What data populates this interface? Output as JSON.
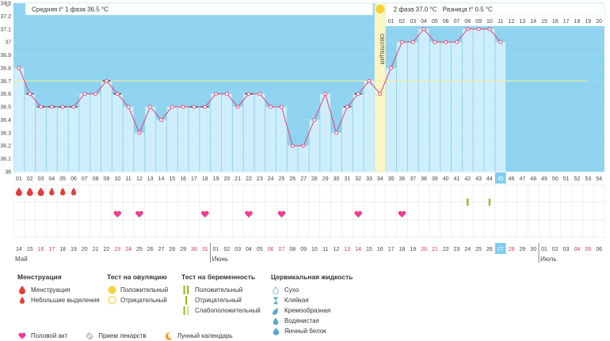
{
  "header": {
    "phase1_label": "Средняя t° 1 фаза 36.5 °C",
    "phase2_label": "2 фаза 37.0 °C",
    "difference_label": "Разница t° 0.5 °C",
    "ovulation_label": "ОВУЛЯЦИЯ"
  },
  "colors": {
    "bar": "#cfeefc",
    "bar_border": "#ffffff",
    "background_future": "#8fd3f0",
    "line": "#e6406e",
    "ovulation": "#fcf6c4",
    "ovulation_dot": "#f7d03a",
    "cover_line": "#f3ee9c",
    "highlight": "#7fcdee",
    "weekend_text": "#e23a52",
    "positive_test": "#93c11c",
    "heart": "#ee3e8f",
    "drop_red": "#e53b3b"
  },
  "chart_data": {
    "type": "bar",
    "title": "",
    "yunit": "°C",
    "yticks": [
      "37.3",
      "37.2",
      "37.1",
      "37",
      "36.9",
      "36.8",
      "36.7",
      "36.6",
      "36.5",
      "36.4",
      "36.3",
      "36.2",
      "36.1",
      "36"
    ],
    "ylim": [
      36.0,
      37.3
    ],
    "cover_line": 36.7,
    "ovulation_day": 34,
    "cycle_days": [
      "01",
      "02",
      "03",
      "04",
      "05",
      "06",
      "07",
      "08",
      "09",
      "10",
      "11",
      "12",
      "13",
      "14",
      "15",
      "16",
      "17",
      "18",
      "19",
      "20",
      "21",
      "22",
      "23",
      "24",
      "25",
      "26",
      "27",
      "28",
      "29",
      "30",
      "31",
      "32",
      "33",
      "34",
      "35",
      "36",
      "37",
      "38",
      "39",
      "40",
      "41",
      "42",
      "43",
      "44",
      "45",
      "46",
      "47",
      "48",
      "49",
      "50",
      "51",
      "52",
      "53",
      "54"
    ],
    "current_day": "45",
    "temperatures": [
      36.8,
      36.6,
      36.5,
      36.5,
      36.5,
      36.5,
      36.6,
      36.6,
      36.7,
      36.6,
      36.5,
      36.3,
      36.5,
      36.4,
      36.5,
      36.5,
      36.5,
      36.5,
      36.6,
      36.6,
      36.5,
      36.6,
      36.6,
      36.5,
      36.5,
      36.2,
      36.2,
      36.4,
      36.6,
      36.3,
      36.5,
      36.6,
      36.7,
      36.6,
      36.8,
      37.0,
      37.0,
      37.1,
      37.0,
      37.0,
      37.0,
      37.1,
      37.1,
      37.1,
      37.0
    ],
    "black_marker_days": [
      2,
      3,
      4,
      5,
      6,
      9,
      10,
      17,
      18,
      22,
      31,
      32
    ],
    "phase2_day_numbers": [
      "01",
      "02",
      "03",
      "04",
      "05",
      "06",
      "07",
      "08",
      "09",
      "10",
      "11",
      "12",
      "13",
      "14",
      "15",
      "16",
      "17",
      "18",
      "19",
      "20"
    ],
    "menstruation_days": [
      1,
      2,
      3,
      4,
      5,
      6
    ],
    "intercourse_days": [
      10,
      12,
      18,
      22,
      25,
      32,
      36
    ],
    "pregnancy_test_days": [
      42,
      44
    ],
    "calendar_dates": [
      "14",
      "15",
      "16",
      "17",
      "18",
      "19",
      "20",
      "21",
      "22",
      "23",
      "24",
      "25",
      "26",
      "27",
      "28",
      "29",
      "30",
      "31",
      "01",
      "02",
      "03",
      "04",
      "05",
      "06",
      "07",
      "08",
      "09",
      "10",
      "11",
      "12",
      "13",
      "14",
      "15",
      "16",
      "17",
      "18",
      "19",
      "20",
      "21",
      "22",
      "23",
      "24",
      "25",
      "26",
      "27",
      "28",
      "29",
      "30",
      "01",
      "02",
      "03",
      "04",
      "05",
      "06"
    ],
    "weekend_days": [
      3,
      4,
      10,
      11,
      17,
      18,
      24,
      25,
      31,
      32,
      38,
      39,
      45,
      46,
      52,
      53
    ],
    "current_calendar_index": 45,
    "months": [
      "Май",
      "Июнь",
      "Июль"
    ],
    "month_start_days": [
      1,
      19,
      49
    ]
  },
  "legend": {
    "menstruation": {
      "title": "Менструация",
      "items": [
        "Менструация",
        "Небольшие выделения"
      ]
    },
    "ovulation_test": {
      "title": "Тест на овуляцию",
      "items": [
        "Положительный",
        "Отрицательный"
      ]
    },
    "pregnancy_test": {
      "title": "Тест на беременность",
      "items": [
        "Положительный",
        "Отрицательный",
        "Слабоположительный"
      ]
    },
    "cervical_fluid": {
      "title": "Цервикальная жидкость",
      "items": [
        "Сухо",
        "Клейкая",
        "Кремообразная",
        "Водянистая",
        "Яичный белок"
      ]
    },
    "bottom": [
      "Половой акт",
      "Прием лекарств",
      "Лунный календарь"
    ]
  }
}
